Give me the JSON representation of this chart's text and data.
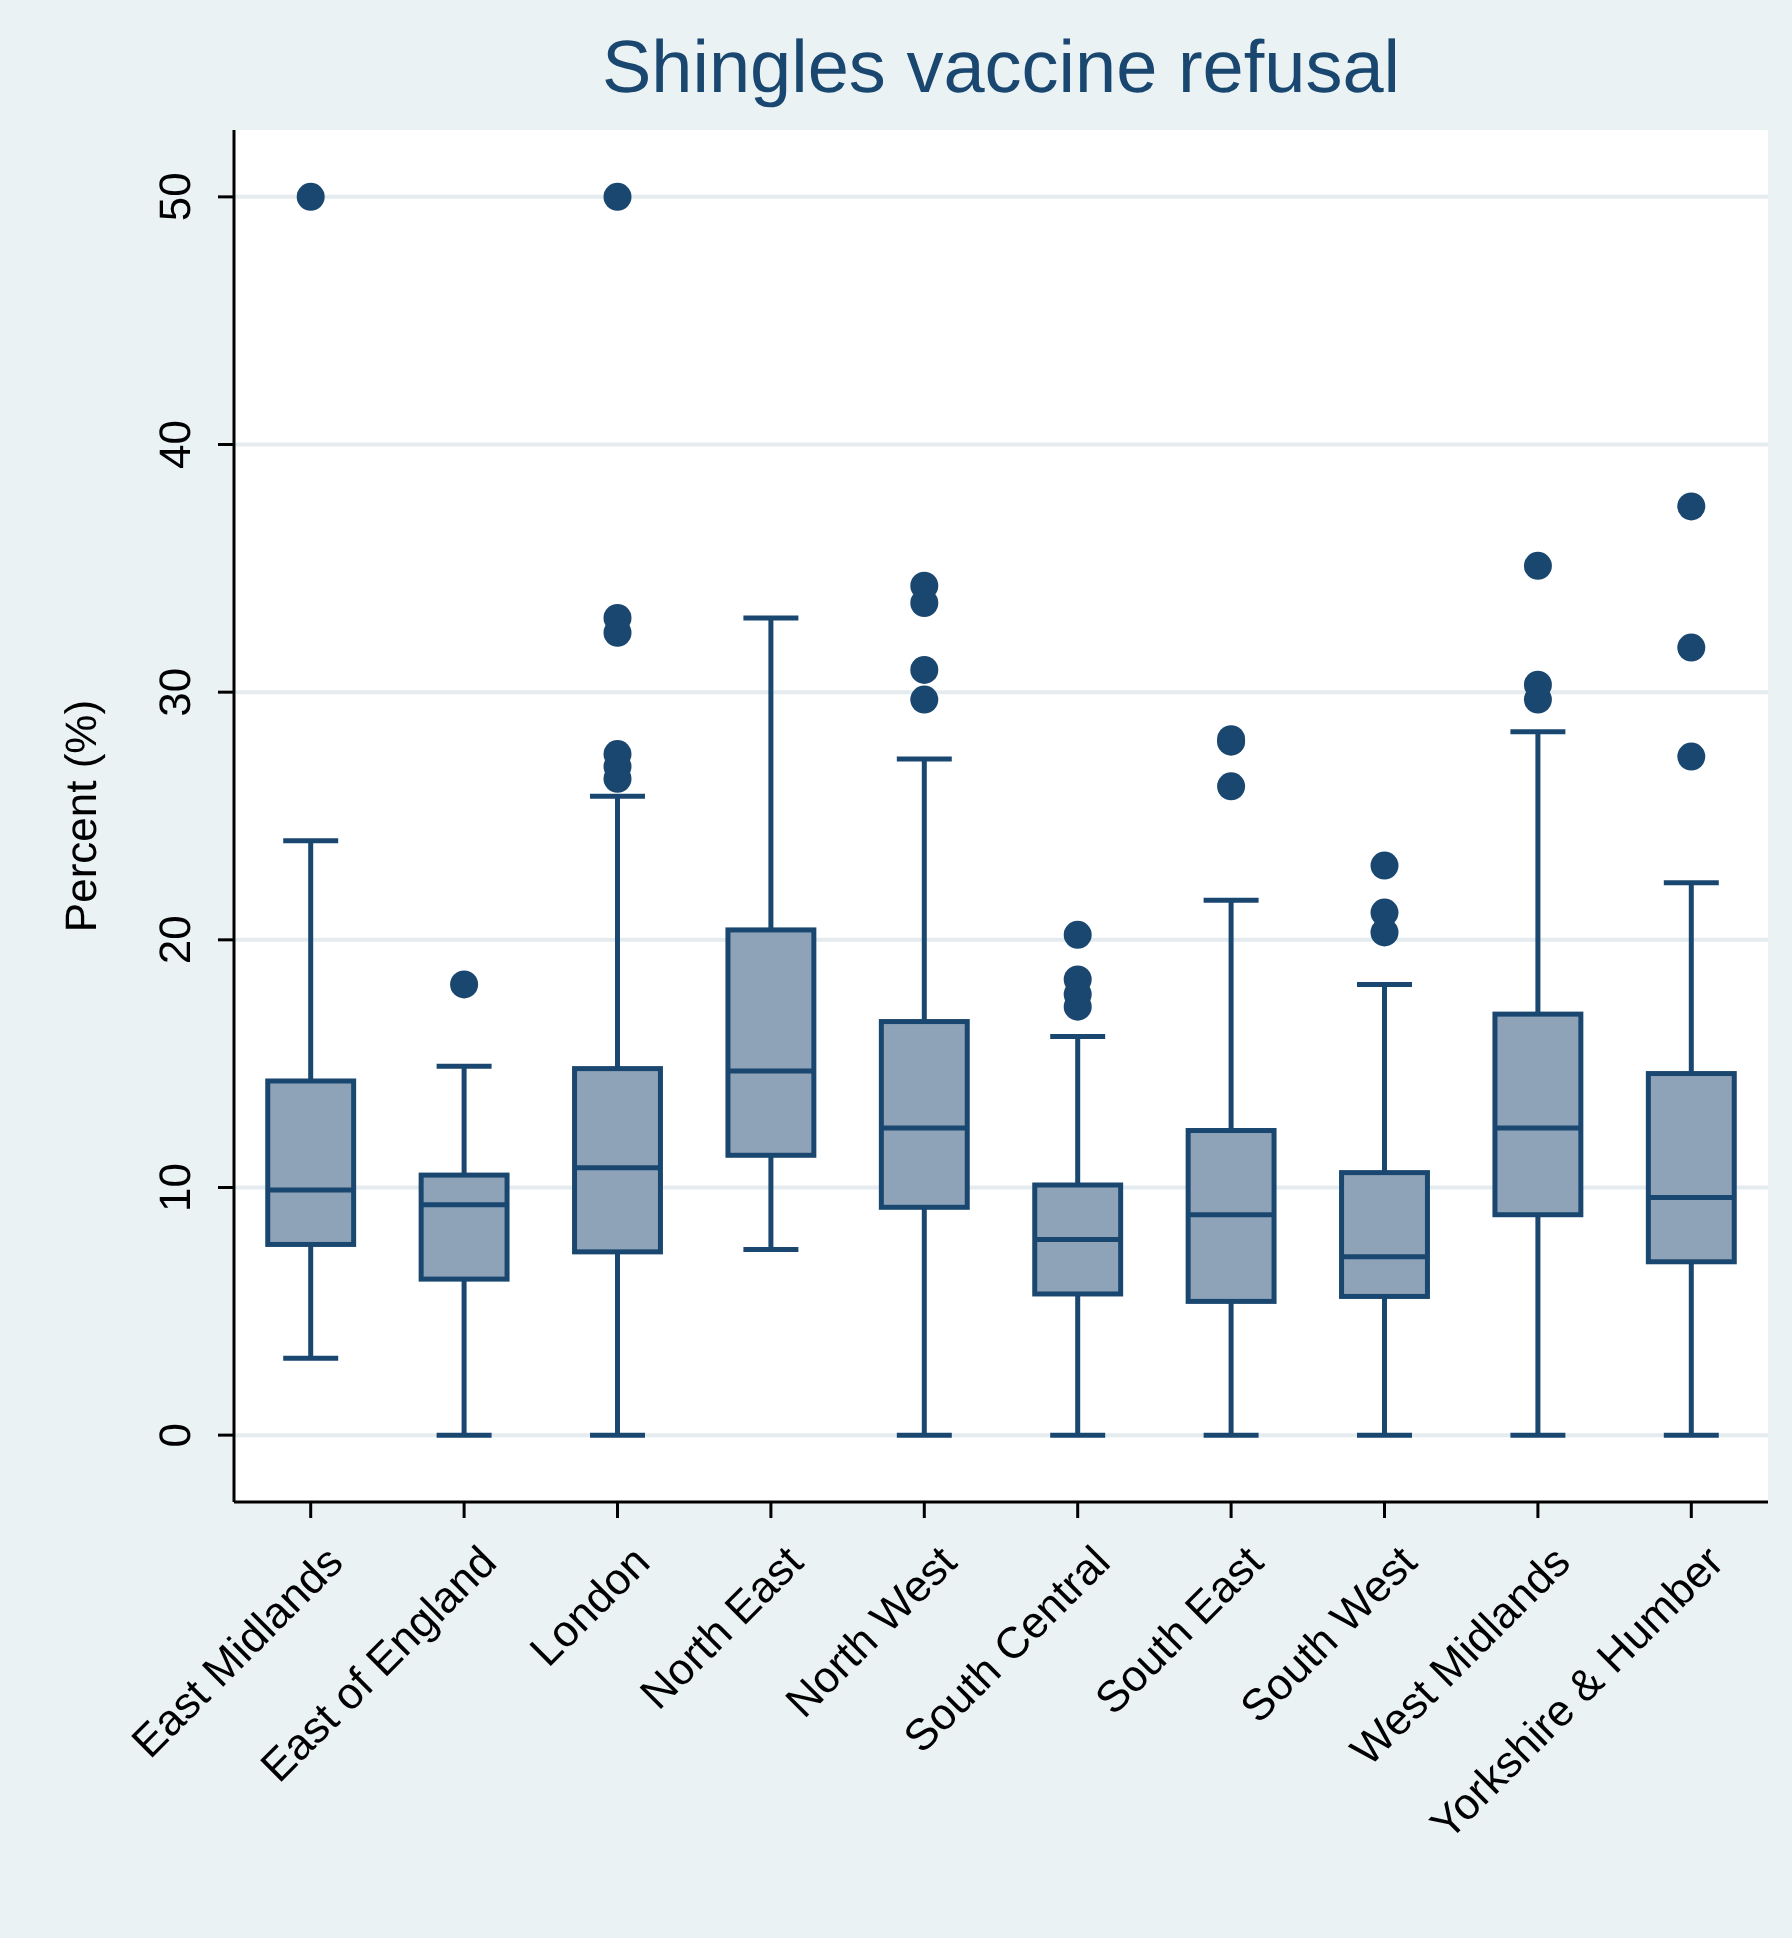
{
  "chart_data": {
    "type": "box",
    "title": "Shingles vaccine refusal",
    "ylabel": "Percent (%)",
    "categories": [
      "East Midlands",
      "East of England",
      "London",
      "North East",
      "North West",
      "South Central",
      "South East",
      "South West",
      "West Midlands",
      "Yorkshire & Humber"
    ],
    "ylim": [
      -2.7,
      52.7
    ],
    "yticks": [
      0,
      10,
      20,
      30,
      40,
      50
    ],
    "grid": "y",
    "color": "#8ea3b8",
    "boxes": [
      {
        "low": 3.1,
        "q1": 7.7,
        "median": 9.9,
        "q3": 14.3,
        "high": 24,
        "outliers": [
          50
        ]
      },
      {
        "low": 0,
        "q1": 6.3,
        "median": 9.3,
        "q3": 10.5,
        "high": 14.9,
        "outliers": [
          18.2
        ]
      },
      {
        "low": 0,
        "q1": 7.4,
        "median": 10.8,
        "q3": 14.8,
        "high": 25.8,
        "outliers": [
          26.5,
          27,
          27.5,
          32.4,
          33,
          50
        ]
      },
      {
        "low": 7.5,
        "q1": 11.3,
        "median": 14.7,
        "q3": 20.4,
        "high": 33
      },
      {
        "low": 0,
        "q1": 9.2,
        "median": 12.4,
        "q3": 16.7,
        "high": 27.3,
        "outliers": [
          29.7,
          30.9,
          33.6,
          34.3
        ]
      },
      {
        "low": 0,
        "q1": 5.7,
        "median": 7.9,
        "q3": 10.1,
        "high": 16.1,
        "outliers": [
          17.3,
          17.8,
          18.4,
          20.2
        ]
      },
      {
        "low": 0,
        "q1": 5.4,
        "median": 8.9,
        "q3": 12.3,
        "high": 21.6,
        "outliers": [
          26.2,
          28,
          28.1
        ]
      },
      {
        "low": 0,
        "q1": 5.6,
        "median": 7.2,
        "q3": 10.6,
        "high": 18.2,
        "outliers": [
          20.3,
          21.1,
          23
        ]
      },
      {
        "low": 0,
        "q1": 8.9,
        "median": 12.4,
        "q3": 17,
        "high": 28.4,
        "outliers": [
          29.7,
          30.3,
          35.1
        ]
      },
      {
        "low": 0,
        "q1": 7,
        "median": 9.6,
        "q3": 14.6,
        "high": 22.3,
        "outliers": [
          27.4,
          31.8,
          37.5
        ]
      }
    ]
  }
}
